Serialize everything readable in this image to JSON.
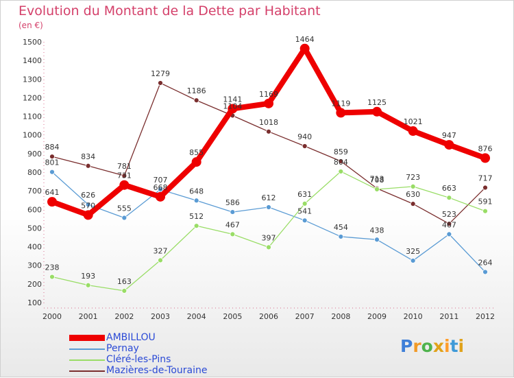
{
  "header": {
    "title": "Evolution du Montant de la Dette par Habitant",
    "unit": "(en €)"
  },
  "brand": {
    "letters": [
      "P",
      "r",
      "o",
      "x",
      "i",
      "t",
      "i"
    ],
    "colors": [
      "#3f7fd8",
      "#f19a28",
      "#4fb34d",
      "#e0a21a",
      "#ff9d2a",
      "#3f9ad8",
      "#e0a21a"
    ]
  },
  "chart_data": {
    "type": "line",
    "title": "Evolution du Montant de la Dette par Habitant",
    "subtitle": "(en €)",
    "x": [
      "2000",
      "2001",
      "2002",
      "2003",
      "2004",
      "2005",
      "2006",
      "2007",
      "2008",
      "2009",
      "2010",
      "2011",
      "2012"
    ],
    "ylim": [
      100,
      1500
    ],
    "yticks": [
      100,
      200,
      300,
      400,
      500,
      600,
      700,
      800,
      900,
      1000,
      1100,
      1200,
      1300,
      1400,
      1500
    ],
    "grid": false,
    "legend_position": "bottom-left",
    "series": [
      {
        "name": "AMBILLOU",
        "color": "#ee0000",
        "values": [
          641,
          570,
          731,
          668,
          855,
          1141,
          1169,
          1464,
          1119,
          1125,
          1021,
          947,
          876
        ]
      },
      {
        "name": "Pernay",
        "color": "#5a9bd4",
        "values": [
          801,
          626,
          555,
          707,
          648,
          586,
          612,
          541,
          454,
          438,
          325,
          467,
          264
        ]
      },
      {
        "name": "Cléré-les-Pins",
        "color": "#99dd66",
        "values": [
          238,
          193,
          163,
          327,
          512,
          467,
          397,
          631,
          804,
          708,
          723,
          663,
          591
        ]
      },
      {
        "name": "Mazières-de-Touraine",
        "color": "#7a2e2e",
        "values": [
          884,
          834,
          781,
          1279,
          1186,
          1104,
          1018,
          940,
          859,
          713,
          630,
          523,
          717
        ]
      }
    ]
  }
}
